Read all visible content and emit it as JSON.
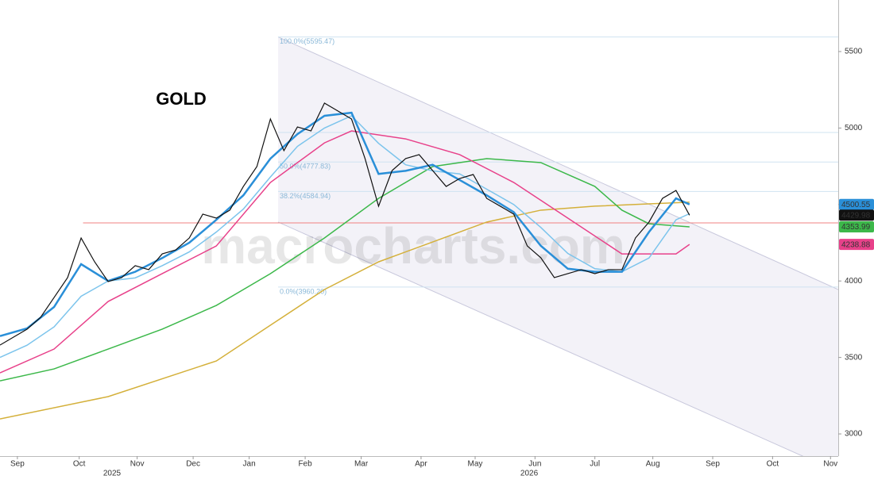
{
  "chart_data": {
    "type": "line",
    "title": "GOLD",
    "watermark": "macrocharts.com",
    "xlim": [
      0,
      434
    ],
    "ylim": [
      2855,
      5837
    ],
    "yticks": [
      3000,
      3500,
      4000,
      4500,
      5000,
      5500
    ],
    "xticks": [
      {
        "value": 9,
        "label": "Sep"
      },
      {
        "value": 41,
        "label": "Oct"
      },
      {
        "value": 71,
        "label": "Nov"
      },
      {
        "value": 100,
        "label": "Dec"
      },
      {
        "value": 129,
        "label": "Jan"
      },
      {
        "value": 158,
        "label": "Feb"
      },
      {
        "value": 187,
        "label": "Mar"
      },
      {
        "value": 218,
        "label": "Apr"
      },
      {
        "value": 246,
        "label": "May"
      },
      {
        "value": 277,
        "label": "Jun"
      },
      {
        "value": 308,
        "label": "Jul"
      },
      {
        "value": 338,
        "label": "Aug"
      },
      {
        "value": 369,
        "label": "Sep"
      },
      {
        "value": 400,
        "label": "Oct"
      },
      {
        "value": 430,
        "label": "Nov"
      }
    ],
    "year_labels": [
      {
        "value": 58,
        "label": "2025"
      },
      {
        "value": 274,
        "label": "2026"
      }
    ],
    "channel": {
      "upper": [
        [
          144,
          5595.47
        ],
        [
          434,
          3944
        ]
      ],
      "lower": [
        [
          144,
          4385
        ],
        [
          434,
          2751
        ]
      ]
    },
    "fib_levels": [
      {
        "value": 5595.47,
        "label": "100.0%(5595.47)"
      },
      {
        "value": 4970.8
      },
      {
        "value": 4777.83,
        "label": "50.0%(4777.83)"
      },
      {
        "value": 4584.94,
        "label": "38.2%(4584.94)"
      },
      {
        "value": 3960.2,
        "label": "0.0%(3960.20)"
      }
    ],
    "hline": {
      "value": 4380,
      "start": 43,
      "color": "#f08080"
    },
    "series": [
      {
        "color": "#d4b03a",
        "width": 1.5,
        "x": [
          0,
          56,
          112,
          140,
          168,
          196,
          224,
          252,
          280,
          308,
          336,
          357
        ],
        "values": [
          3098,
          3244,
          3477,
          3711,
          3944,
          4125,
          4255,
          4385,
          4463,
          4489,
          4504,
          4515
        ]
      },
      {
        "color": "#3cb84a",
        "width": 1.5,
        "label": true,
        "x": [
          0,
          28,
          56,
          84,
          112,
          140,
          168,
          196,
          224,
          252,
          280,
          308,
          322,
          336,
          357
        ],
        "values": [
          3347,
          3425,
          3555,
          3685,
          3840,
          4048,
          4281,
          4540,
          4748,
          4800,
          4774,
          4618,
          4463,
          4374,
          4353.99
        ]
      },
      {
        "color": "#e8418a",
        "width": 1.5,
        "label": true,
        "x": [
          0,
          28,
          56,
          84,
          112,
          140,
          168,
          182,
          210,
          238,
          266,
          294,
          322,
          350,
          357
        ],
        "values": [
          3399,
          3555,
          3866,
          4048,
          4229,
          4644,
          4903,
          4981,
          4929,
          4826,
          4644,
          4411,
          4177,
          4177,
          4238.88
        ]
      },
      {
        "color": "#7cc4ec",
        "width": 1.5,
        "x": [
          0,
          14,
          28,
          42,
          56,
          70,
          84,
          98,
          112,
          126,
          140,
          154,
          168,
          182,
          196,
          210,
          224,
          238,
          252,
          266,
          280,
          294,
          308,
          322,
          336,
          350,
          357
        ],
        "values": [
          3500,
          3580,
          3700,
          3900,
          4000,
          4020,
          4100,
          4190,
          4320,
          4470,
          4680,
          4880,
          5000,
          5080,
          4900,
          4760,
          4720,
          4700,
          4600,
          4500,
          4350,
          4180,
          4080,
          4060,
          4150,
          4400,
          4440
        ]
      },
      {
        "color": "#2a8fd8",
        "width": 2.5,
        "label": true,
        "x": [
          0,
          14,
          28,
          42,
          56,
          70,
          84,
          98,
          112,
          126,
          140,
          154,
          168,
          182,
          196,
          210,
          224,
          238,
          252,
          266,
          280,
          294,
          308,
          322,
          336,
          350,
          357
        ],
        "values": [
          3640,
          3690,
          3830,
          4110,
          4000,
          4060,
          4150,
          4250,
          4400,
          4560,
          4800,
          4960,
          5080,
          5100,
          4700,
          4720,
          4760,
          4660,
          4560,
          4450,
          4230,
          4080,
          4060,
          4060,
          4320,
          4540,
          4500.55
        ]
      },
      {
        "color": "#111111",
        "width": 1.2,
        "label": true,
        "x": [
          0,
          7,
          14,
          21,
          28,
          35,
          42,
          49,
          56,
          63,
          70,
          77,
          84,
          91,
          98,
          105,
          112,
          119,
          126,
          133,
          140,
          147,
          154,
          161,
          168,
          175,
          182,
          189,
          196,
          203,
          210,
          217,
          224,
          231,
          238,
          245,
          252,
          259,
          266,
          273,
          280,
          287,
          294,
          301,
          308,
          315,
          322,
          329,
          336,
          343,
          350,
          357
        ],
        "values": [
          3581,
          3633,
          3685,
          3762,
          3892,
          4022,
          4281,
          4125,
          3996,
          4022,
          4100,
          4074,
          4177,
          4203,
          4281,
          4437,
          4411,
          4463,
          4618,
          4748,
          5059,
          4852,
          5007,
          4981,
          5163,
          5111,
          5059,
          4800,
          4489,
          4722,
          4800,
          4826,
          4722,
          4618,
          4670,
          4696,
          4540,
          4489,
          4437,
          4229,
          4152,
          4022,
          4048,
          4074,
          4048,
          4074,
          4074,
          4281,
          4385,
          4540,
          4592,
          4429.98
        ]
      }
    ]
  }
}
